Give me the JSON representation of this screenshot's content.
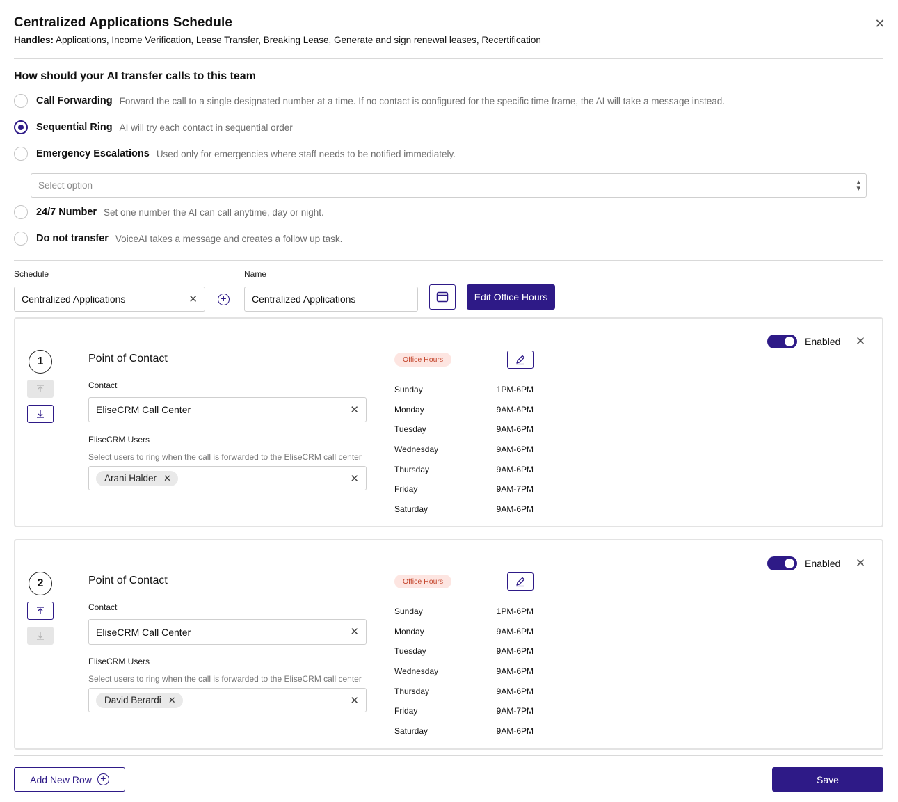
{
  "dialog": {
    "title": "Centralized Applications Schedule",
    "handles_label": "Handles:",
    "handles_value": "Applications, Income Verification, Lease Transfer, Breaking Lease, Generate and sign renewal leases, Recertification"
  },
  "transfer": {
    "question": "How should your AI transfer calls to this team",
    "options": [
      {
        "label": "Call Forwarding",
        "description": "Forward the call to a single designated number at a time. If no contact is configured for the specific time frame, the AI will take a message instead.",
        "selected": false
      },
      {
        "label": "Sequential Ring",
        "description": "AI will try each contact in sequential order",
        "selected": true
      },
      {
        "label": "Emergency Escalations",
        "description": "Used only for emergencies where staff needs to be notified immediately.",
        "selected": false
      },
      {
        "label": "24/7 Number",
        "description": "Set one number the AI can call anytime, day or night.",
        "selected": false
      },
      {
        "label": "Do not transfer",
        "description": "VoiceAI takes a message and creates a follow up task.",
        "selected": false
      }
    ],
    "select_placeholder": "Select option"
  },
  "schedule": {
    "schedule_label": "Schedule",
    "schedule_value": "Centralized Applications",
    "name_label": "Name",
    "name_value": "Centralized Applications",
    "edit_hours_label": "Edit Office Hours"
  },
  "contacts": [
    {
      "number": "1",
      "title": "Point of Contact",
      "contact_label": "Contact",
      "contact_value": "EliseCRM Call Center",
      "users_label": "EliseCRM Users",
      "users_hint": "Select users to ring when the call is forwarded to the EliseCRM call center",
      "user_chip": "Arani Halder",
      "badge": "Office Hours",
      "enabled_label": "Enabled",
      "up_enabled": false,
      "down_enabled": true,
      "hours": [
        {
          "day": "Sunday",
          "time": "1PM-6PM"
        },
        {
          "day": "Monday",
          "time": "9AM-6PM"
        },
        {
          "day": "Tuesday",
          "time": "9AM-6PM"
        },
        {
          "day": "Wednesday",
          "time": "9AM-6PM"
        },
        {
          "day": "Thursday",
          "time": "9AM-6PM"
        },
        {
          "day": "Friday",
          "time": "9AM-7PM"
        },
        {
          "day": "Saturday",
          "time": "9AM-6PM"
        }
      ]
    },
    {
      "number": "2",
      "title": "Point of Contact",
      "contact_label": "Contact",
      "contact_value": "EliseCRM Call Center",
      "users_label": "EliseCRM Users",
      "users_hint": "Select users to ring when the call is forwarded to the EliseCRM call center",
      "user_chip": "David Berardi",
      "badge": "Office Hours",
      "enabled_label": "Enabled",
      "up_enabled": true,
      "down_enabled": false,
      "hours": [
        {
          "day": "Sunday",
          "time": "1PM-6PM"
        },
        {
          "day": "Monday",
          "time": "9AM-6PM"
        },
        {
          "day": "Tuesday",
          "time": "9AM-6PM"
        },
        {
          "day": "Wednesday",
          "time": "9AM-6PM"
        },
        {
          "day": "Thursday",
          "time": "9AM-6PM"
        },
        {
          "day": "Friday",
          "time": "9AM-7PM"
        },
        {
          "day": "Saturday",
          "time": "9AM-6PM"
        }
      ]
    }
  ],
  "footer": {
    "add_row_label": "Add New Row",
    "save_label": "Save"
  },
  "colors": {
    "accent": "#2e1a87",
    "badge_bg": "#fde5e1",
    "badge_text": "#c4472e"
  }
}
